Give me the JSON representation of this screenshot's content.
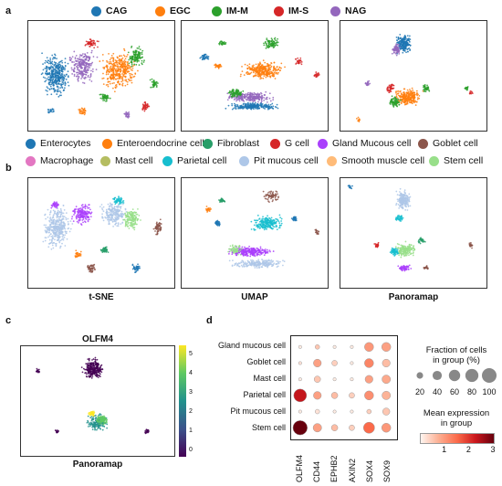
{
  "panels": {
    "a": "a",
    "b": "b",
    "c": "c",
    "d": "d"
  },
  "legend_a": [
    {
      "label": "CAG",
      "color": "#1f77b4"
    },
    {
      "label": "EGC",
      "color": "#ff7f0e"
    },
    {
      "label": "IM-M",
      "color": "#2ca02c"
    },
    {
      "label": "IM-S",
      "color": "#d62728"
    },
    {
      "label": "NAG",
      "color": "#9467bd"
    }
  ],
  "legend_b": [
    {
      "label": "Enterocytes",
      "color": "#1f77b4"
    },
    {
      "label": "Enteroendocrine cell",
      "color": "#ff7f0e"
    },
    {
      "label": "Fibroblast",
      "color": "#279e68"
    },
    {
      "label": "G cell",
      "color": "#d62728"
    },
    {
      "label": "Gland Mucous cell",
      "color": "#aa40fc"
    },
    {
      "label": "Goblet cell",
      "color": "#8c564b"
    },
    {
      "label": "Macrophage",
      "color": "#e377c2"
    },
    {
      "label": "Mast cell",
      "color": "#b5bd61"
    },
    {
      "label": "Parietal cell",
      "color": "#17becf"
    },
    {
      "label": "Pit mucous cell",
      "color": "#aec7e8"
    },
    {
      "label": "Smooth muscle cell",
      "color": "#ffbb78"
    },
    {
      "label": "Stem cell",
      "color": "#98df8a"
    }
  ],
  "methods": [
    "t-SNE",
    "UMAP",
    "Panoramap"
  ],
  "panel_c": {
    "title": "OLFM4",
    "xlabel": "Panoramap",
    "colorbar_ticks": [
      "5",
      "4",
      "3",
      "2",
      "1",
      "0"
    ]
  },
  "chart_data": {
    "type": "dotplot",
    "rows": [
      "Gland mucous cell",
      "Goblet cell",
      "Mast cell",
      "Parietal cell",
      "Pit mucous cell",
      "Stem cell"
    ],
    "genes": [
      "OLFM4",
      "CD44",
      "EPHB2",
      "AXIN2",
      "SOX4",
      "SOX9"
    ],
    "fraction_pct": [
      [
        5,
        10,
        5,
        5,
        40,
        40
      ],
      [
        5,
        30,
        15,
        5,
        40,
        30
      ],
      [
        5,
        20,
        5,
        5,
        30,
        35
      ],
      [
        80,
        30,
        20,
        15,
        40,
        35
      ],
      [
        5,
        10,
        5,
        5,
        10,
        25
      ],
      [
        100,
        35,
        20,
        15,
        60,
        40
      ]
    ],
    "mean_expr": [
      [
        0.1,
        0.5,
        0.1,
        0.1,
        1.0,
        0.9
      ],
      [
        0.2,
        0.9,
        0.4,
        0.1,
        1.2,
        0.6
      ],
      [
        0.1,
        0.5,
        0.1,
        0.1,
        0.9,
        0.8
      ],
      [
        2.3,
        0.9,
        0.6,
        0.4,
        1.1,
        0.7
      ],
      [
        0.1,
        0.2,
        0.1,
        0.1,
        0.4,
        0.5
      ],
      [
        3.0,
        0.9,
        0.6,
        0.4,
        1.5,
        1.0
      ]
    ],
    "size_legend_title": "Fraction of cells\nin group (%)",
    "size_legend_values": [
      "20",
      "40",
      "60",
      "80",
      "100"
    ],
    "color_legend_title": "Mean expression\nin group",
    "color_legend_ticks": [
      "1",
      "2",
      "3"
    ],
    "color_range": [
      0,
      3
    ]
  }
}
